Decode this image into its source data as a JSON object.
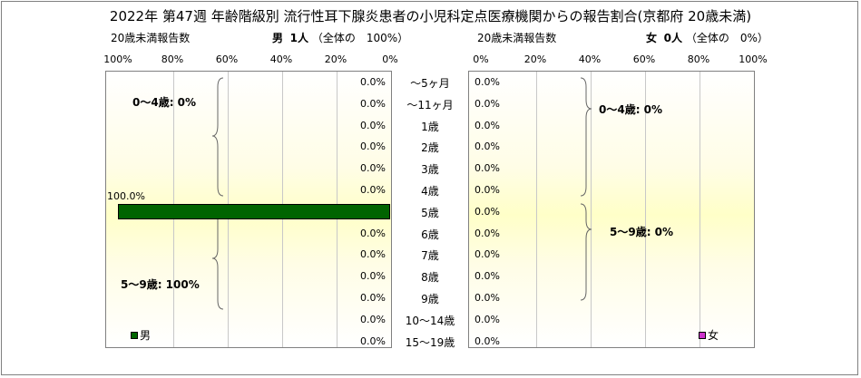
{
  "title": "2022年 第47週 年齢階級別 流行性耳下腺炎患者の小児科定点医療機関からの報告割合(京都府 20歳未満)",
  "left_panel": {
    "count_label": "20歳未満報告数",
    "sex": "男",
    "count_text": "1人",
    "share_text": "（全体の　100%）",
    "legend": "男",
    "group_labels": [
      "0～4歳: 0%",
      "5～9歳: 100%"
    ],
    "color": "#006400"
  },
  "right_panel": {
    "count_label": "20歳未満報告数",
    "sex": "女",
    "count_text": "0人",
    "share_text": "（全体の　0%）",
    "legend": "女",
    "group_labels": [
      "0～4歳: 0%",
      "5～9歳: 0%"
    ],
    "color": "#cc33cc"
  },
  "chart_data": [
    {
      "type": "bar",
      "orientation": "horizontal",
      "direction": "right-to-left",
      "categories": [
        "～5ヶ月",
        "～11ヶ月",
        "1歳",
        "2歳",
        "3歳",
        "4歳",
        "5歳",
        "6歳",
        "7歳",
        "8歳",
        "9歳",
        "10～14歳",
        "15～19歳"
      ],
      "series": [
        {
          "name": "男",
          "values": [
            0,
            0,
            0,
            0,
            0,
            0,
            100,
            0,
            0,
            0,
            0,
            0,
            0
          ]
        }
      ],
      "data_labels": [
        "0.0%",
        "0.0%",
        "0.0%",
        "0.0%",
        "0.0%",
        "0.0%",
        "100.0%",
        "0.0%",
        "0.0%",
        "0.0%",
        "0.0%",
        "0.0%",
        "0.0%"
      ],
      "xlim": [
        0,
        100
      ],
      "xticks": [
        "100%",
        "80%",
        "60%",
        "40%",
        "20%",
        "0%"
      ],
      "grid": true,
      "legend": "bottom-left"
    },
    {
      "type": "bar",
      "orientation": "horizontal",
      "direction": "left-to-right",
      "categories": [
        "～5ヶ月",
        "～11ヶ月",
        "1歳",
        "2歳",
        "3歳",
        "4歳",
        "5歳",
        "6歳",
        "7歳",
        "8歳",
        "9歳",
        "10～14歳",
        "15～19歳"
      ],
      "series": [
        {
          "name": "女",
          "values": [
            0,
            0,
            0,
            0,
            0,
            0,
            0,
            0,
            0,
            0,
            0,
            0,
            0
          ]
        }
      ],
      "data_labels": [
        "0.0%",
        "0.0%",
        "0.0%",
        "0.0%",
        "0.0%",
        "0.0%",
        "0.0%",
        "0.0%",
        "0.0%",
        "0.0%",
        "0.0%",
        "0.0%",
        "0.0%"
      ],
      "xlim": [
        0,
        100
      ],
      "xticks": [
        "0%",
        "20%",
        "40%",
        "60%",
        "80%",
        "100%"
      ],
      "grid": true,
      "legend": "bottom-right"
    }
  ]
}
